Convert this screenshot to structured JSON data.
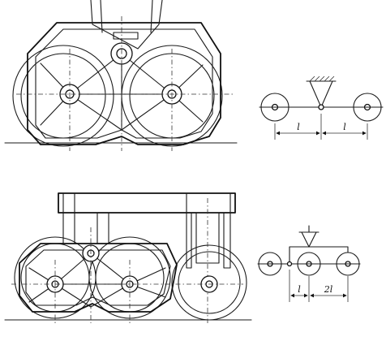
{
  "diagrams": [
    {
      "id": "top",
      "dimension_labels": [
        "l",
        "l"
      ]
    },
    {
      "id": "bottom",
      "dimension_labels": [
        "l",
        "2l"
      ]
    }
  ]
}
